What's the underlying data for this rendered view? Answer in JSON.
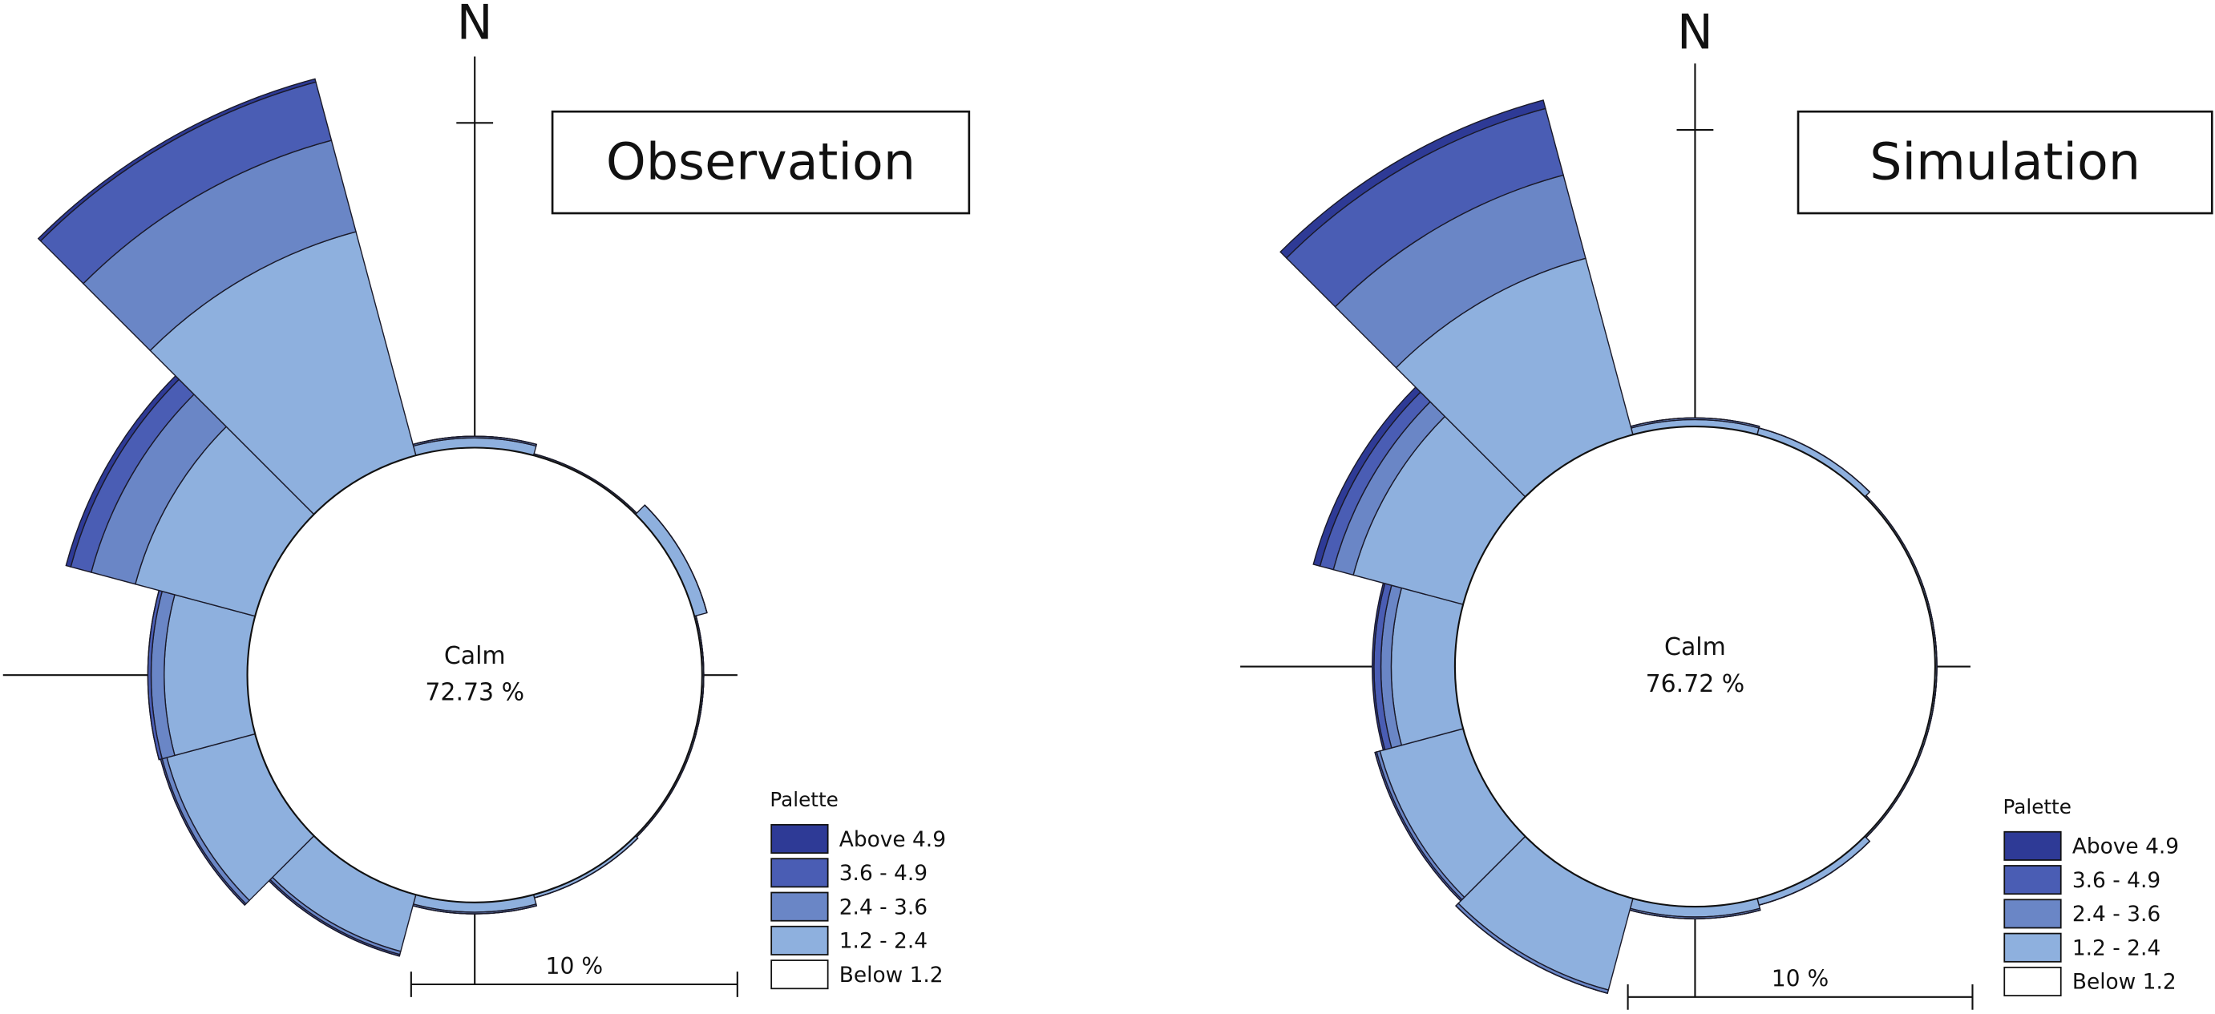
{
  "chart_data": [
    {
      "type": "windrose",
      "title": "Observation",
      "north_label": "N",
      "calm": {
        "label": "Calm",
        "value": 72.73,
        "value_label": "72.73 %"
      },
      "legend_title": "Palette",
      "series": [
        {
          "name": "Above 4.9",
          "color": "#2e3a96",
          "values": [
            0,
            0,
            0,
            0,
            0,
            0,
            0,
            0,
            0,
            0,
            0.15,
            0.1
          ]
        },
        {
          "name": "3.6 - 4.9",
          "color": "#4a5db4",
          "values": [
            0,
            0,
            0,
            0,
            0,
            0,
            0,
            0.05,
            0.05,
            0.1,
            0.65,
            1.85
          ]
        },
        {
          "name": "2.4 - 3.6",
          "color": "#6a86c6",
          "values": [
            0.05,
            0,
            0,
            0,
            0,
            0,
            0.05,
            0.1,
            0.15,
            0.4,
            1.4,
            2.9
          ]
        },
        {
          "name": "1.2 - 2.4",
          "color": "#8eb0de",
          "values": [
            0.3,
            0.05,
            0.4,
            0.05,
            0.05,
            0.1,
            0.3,
            1.8,
            2.8,
            2.55,
            3.8,
            7.1
          ]
        }
      ],
      "calm_legend": {
        "name": "Below 1.2",
        "color": "#ffffff"
      },
      "scale_bar": {
        "value": 10,
        "label": "10 %"
      }
    },
    {
      "type": "windrose",
      "title": "Simulation",
      "north_label": "N",
      "calm": {
        "label": "Calm",
        "value": 76.72,
        "value_label": "76.72 %"
      },
      "legend_title": "Palette",
      "series": [
        {
          "name": "Above 4.9",
          "color": "#2e3a96",
          "values": [
            0,
            0,
            0,
            0,
            0,
            0,
            0,
            0,
            0,
            0.05,
            0.2,
            0.25
          ]
        },
        {
          "name": "3.6 - 4.9",
          "color": "#4a5db4",
          "values": [
            0,
            0,
            0,
            0,
            0,
            0,
            0,
            0,
            0.05,
            0.2,
            0.4,
            2.0
          ]
        },
        {
          "name": "2.4 - 3.6",
          "color": "#6a86c6",
          "values": [
            0.05,
            0,
            0,
            0,
            0,
            0,
            0.05,
            0.1,
            0.1,
            0.3,
            0.6,
            2.5
          ]
        },
        {
          "name": "1.2 - 2.4",
          "color": "#8eb0de",
          "values": [
            0.2,
            0.2,
            0.05,
            0.05,
            0.05,
            0.2,
            0.3,
            2.75,
            2.5,
            1.85,
            3.3,
            5.3
          ]
        }
      ],
      "calm_legend": {
        "name": "Below 1.2",
        "color": "#ffffff"
      },
      "scale_bar": {
        "value": 10,
        "label": "10 %"
      }
    }
  ]
}
